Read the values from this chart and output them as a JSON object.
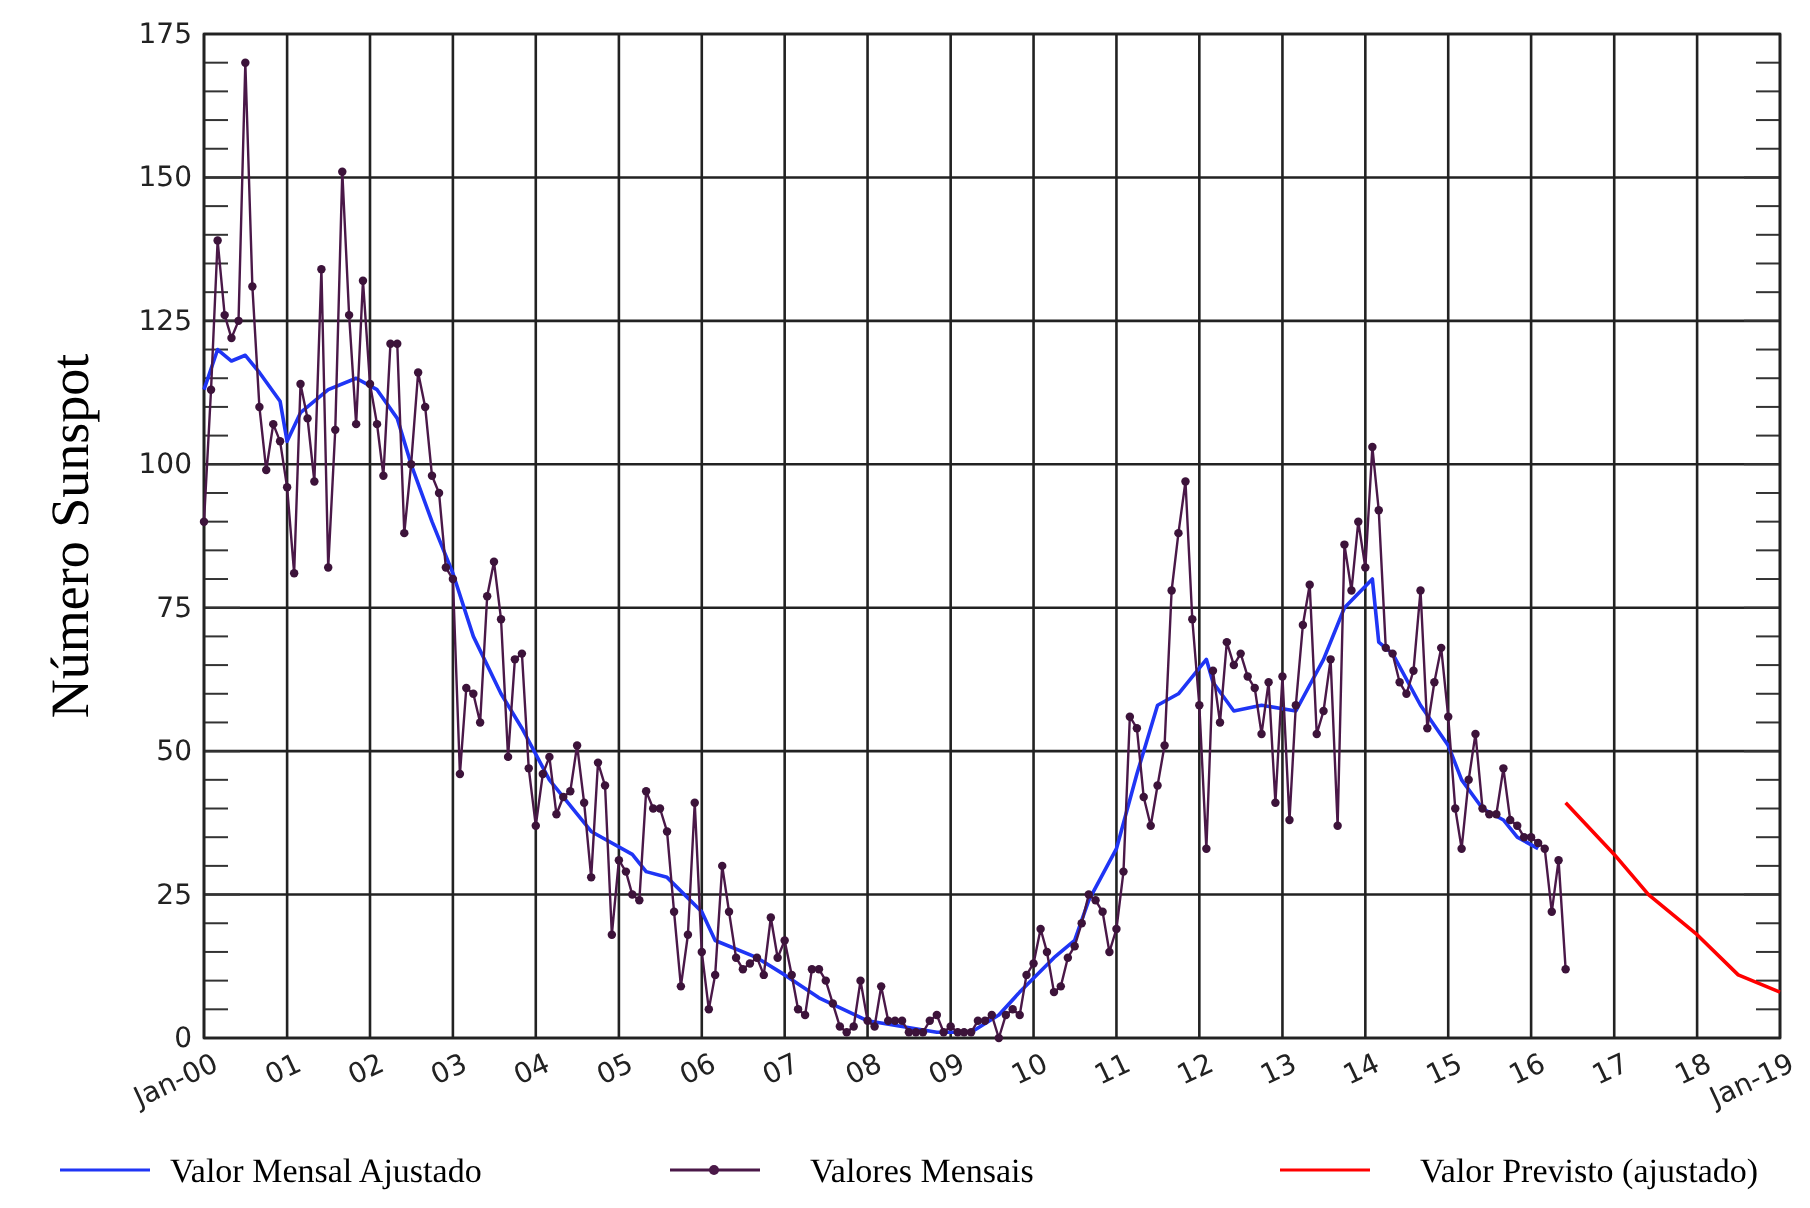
{
  "chart_data": {
    "type": "line",
    "ylabel": "Número Sunspot",
    "xlim": [
      "2000-01",
      "2019-01"
    ],
    "xticks": [
      {
        "value": "2000-01",
        "label": "Jan-00"
      },
      {
        "value": "2001-01",
        "label": "01"
      },
      {
        "value": "2002-01",
        "label": "02"
      },
      {
        "value": "2003-01",
        "label": "03"
      },
      {
        "value": "2004-01",
        "label": "04"
      },
      {
        "value": "2005-01",
        "label": "05"
      },
      {
        "value": "2006-01",
        "label": "06"
      },
      {
        "value": "2007-01",
        "label": "07"
      },
      {
        "value": "2008-01",
        "label": "08"
      },
      {
        "value": "2009-01",
        "label": "09"
      },
      {
        "value": "2010-01",
        "label": "10"
      },
      {
        "value": "2011-01",
        "label": "11"
      },
      {
        "value": "2012-01",
        "label": "12"
      },
      {
        "value": "2013-01",
        "label": "13"
      },
      {
        "value": "2014-01",
        "label": "14"
      },
      {
        "value": "2015-01",
        "label": "15"
      },
      {
        "value": "2016-01",
        "label": "16"
      },
      {
        "value": "2017-01",
        "label": "17"
      },
      {
        "value": "2018-01",
        "label": "18"
      },
      {
        "value": "2019-01",
        "label": "Jan-19"
      }
    ],
    "ylim": [
      0,
      175
    ],
    "yticks": [
      0,
      {
        "value": 5,
        "label": null
      },
      {
        "value": 10,
        "label": null
      },
      {
        "value": 15,
        "label": null
      },
      {
        "value": 20,
        "label": null
      },
      25,
      {
        "value": 30,
        "label": null
      },
      {
        "value": 35,
        "label": null
      },
      {
        "value": 40,
        "label": null
      },
      {
        "value": 45,
        "label": null
      },
      50,
      {
        "value": 55,
        "label": null
      },
      {
        "value": 60,
        "label": null
      },
      {
        "value": 65,
        "label": null
      },
      {
        "value": 70,
        "label": null
      },
      75,
      {
        "value": 80,
        "label": null
      },
      {
        "value": 85,
        "label": null
      },
      {
        "value": 90,
        "label": null
      },
      {
        "value": 95,
        "label": null
      },
      100,
      {
        "value": 105,
        "label": null
      },
      {
        "value": 110,
        "label": null
      },
      {
        "value": 115,
        "label": null
      },
      {
        "value": 120,
        "label": null
      },
      125,
      {
        "value": 130,
        "label": null
      },
      {
        "value": 135,
        "label": null
      },
      {
        "value": 140,
        "label": null
      },
      {
        "value": 145,
        "label": null
      },
      150,
      {
        "value": 155,
        "label": null
      },
      {
        "value": 160,
        "label": null
      },
      {
        "value": 165,
        "label": null
      },
      {
        "value": 170,
        "label": null
      },
      175
    ],
    "grid": true,
    "legend": "bottom",
    "series": [
      {
        "name": "Valor Mensal Ajustado",
        "color": "#1f35f5",
        "x": [
          "2000-01",
          "2000-03",
          "2000-05",
          "2000-07",
          "2000-09",
          "2000-12",
          "2001-01",
          "2001-03",
          "2001-07",
          "2001-11",
          "2002-02",
          "2002-05",
          "2002-07",
          "2002-10",
          "2003-01",
          "2003-04",
          "2003-08",
          "2003-11",
          "2004-03",
          "2004-09",
          "2005-03",
          "2005-05",
          "2005-08",
          "2006-01",
          "2006-03",
          "2006-09",
          "2007-01",
          "2007-06",
          "2008-01",
          "2008-06",
          "2008-11",
          "2009-04",
          "2009-08",
          "2009-11",
          "2010-04",
          "2010-07",
          "2010-09",
          "2011-01",
          "2011-04",
          "2011-07",
          "2011-10",
          "2012-02",
          "2012-03",
          "2012-06",
          "2012-10",
          "2013-03",
          "2013-07",
          "2013-10",
          "2014-02",
          "2014-03",
          "2014-05",
          "2014-09",
          "2015-01",
          "2015-03",
          "2015-06",
          "2015-09",
          "2015-11",
          "2016-02"
        ],
        "values": [
          113,
          120,
          118,
          119,
          116,
          111,
          104,
          109,
          113,
          115,
          113,
          108,
          100,
          90,
          81,
          70,
          60,
          54,
          45,
          36,
          32,
          29,
          28,
          22,
          17,
          14,
          11,
          7,
          3,
          2,
          1,
          1,
          4,
          8,
          14,
          17,
          24,
          33,
          46,
          58,
          60,
          66,
          62,
          57,
          58,
          57,
          66,
          75,
          80,
          69,
          67,
          58,
          51,
          45,
          40,
          38,
          35,
          33
        ]
      },
      {
        "name": "Valores Mensais",
        "color": "#4a1848",
        "marker": "circle",
        "x": [
          "2000-01",
          "2000-02",
          "2000-03",
          "2000-04",
          "2000-05",
          "2000-06",
          "2000-07",
          "2000-08",
          "2000-09",
          "2000-10",
          "2000-11",
          "2000-12",
          "2001-01",
          "2001-02",
          "2001-03",
          "2001-04",
          "2001-05",
          "2001-06",
          "2001-07",
          "2001-08",
          "2001-09",
          "2001-10",
          "2001-11",
          "2001-12",
          "2002-01",
          "2002-02",
          "2002-03",
          "2002-04",
          "2002-05",
          "2002-06",
          "2002-07",
          "2002-08",
          "2002-09",
          "2002-10",
          "2002-11",
          "2002-12",
          "2003-01",
          "2003-02",
          "2003-03",
          "2003-04",
          "2003-05",
          "2003-06",
          "2003-07",
          "2003-08",
          "2003-09",
          "2003-10",
          "2003-11",
          "2003-12",
          "2004-01",
          "2004-02",
          "2004-03",
          "2004-04",
          "2004-05",
          "2004-06",
          "2004-07",
          "2004-08",
          "2004-09",
          "2004-10",
          "2004-11",
          "2004-12",
          "2005-01",
          "2005-02",
          "2005-03",
          "2005-04",
          "2005-05",
          "2005-06",
          "2005-07",
          "2005-08",
          "2005-09",
          "2005-10",
          "2005-11",
          "2005-12",
          "2006-01",
          "2006-02",
          "2006-03",
          "2006-04",
          "2006-05",
          "2006-06",
          "2006-07",
          "2006-08",
          "2006-09",
          "2006-10",
          "2006-11",
          "2006-12",
          "2007-01",
          "2007-02",
          "2007-03",
          "2007-04",
          "2007-05",
          "2007-06",
          "2007-07",
          "2007-08",
          "2007-09",
          "2007-10",
          "2007-11",
          "2007-12",
          "2008-01",
          "2008-02",
          "2008-03",
          "2008-04",
          "2008-05",
          "2008-06",
          "2008-07",
          "2008-08",
          "2008-09",
          "2008-10",
          "2008-11",
          "2008-12",
          "2009-01",
          "2009-02",
          "2009-03",
          "2009-04",
          "2009-05",
          "2009-06",
          "2009-07",
          "2009-08",
          "2009-09",
          "2009-10",
          "2009-11",
          "2009-12",
          "2010-01",
          "2010-02",
          "2010-03",
          "2010-04",
          "2010-05",
          "2010-06",
          "2010-07",
          "2010-08",
          "2010-09",
          "2010-10",
          "2010-11",
          "2010-12",
          "2011-01",
          "2011-02",
          "2011-03",
          "2011-04",
          "2011-05",
          "2011-06",
          "2011-07",
          "2011-08",
          "2011-09",
          "2011-10",
          "2011-11",
          "2011-12",
          "2012-01",
          "2012-02",
          "2012-03",
          "2012-04",
          "2012-05",
          "2012-06",
          "2012-07",
          "2012-08",
          "2012-09",
          "2012-10",
          "2012-11",
          "2012-12",
          "2013-01",
          "2013-02",
          "2013-03",
          "2013-04",
          "2013-05",
          "2013-06",
          "2013-07",
          "2013-08",
          "2013-09",
          "2013-10",
          "2013-11",
          "2013-12",
          "2014-01",
          "2014-02",
          "2014-03",
          "2014-04",
          "2014-05",
          "2014-06",
          "2014-07",
          "2014-08",
          "2014-09",
          "2014-10",
          "2014-11",
          "2014-12",
          "2015-01",
          "2015-02",
          "2015-03",
          "2015-04",
          "2015-05",
          "2015-06",
          "2015-07",
          "2015-08",
          "2015-09",
          "2015-10",
          "2015-11",
          "2015-12",
          "2016-01",
          "2016-02",
          "2016-03",
          "2016-04",
          "2016-05",
          "2016-06"
        ],
        "values": [
          90,
          113,
          139,
          126,
          122,
          125,
          170,
          131,
          110,
          99,
          107,
          104,
          96,
          81,
          114,
          108,
          97,
          134,
          82,
          106,
          151,
          126,
          107,
          132,
          114,
          107,
          98,
          121,
          121,
          88,
          100,
          116,
          110,
          98,
          95,
          82,
          80,
          46,
          61,
          60,
          55,
          77,
          83,
          73,
          49,
          66,
          67,
          47,
          37,
          46,
          49,
          39,
          42,
          43,
          51,
          41,
          28,
          48,
          44,
          18,
          31,
          29,
          25,
          24,
          43,
          40,
          40,
          36,
          22,
          9,
          18,
          41,
          15,
          5,
          11,
          30,
          22,
          14,
          12,
          13,
          14,
          11,
          21,
          14,
          17,
          11,
          5,
          4,
          12,
          12,
          10,
          6,
          2,
          1,
          2,
          10,
          3,
          2,
          9,
          3,
          3,
          3,
          1,
          1,
          1,
          3,
          4,
          1,
          2,
          1,
          1,
          1,
          3,
          3,
          4,
          0,
          4,
          5,
          4,
          11,
          13,
          19,
          15,
          8,
          9,
          14,
          16,
          20,
          25,
          24,
          22,
          15,
          19,
          29,
          56,
          54,
          42,
          37,
          44,
          51,
          78,
          88,
          97,
          73,
          58,
          33,
          64,
          55,
          69,
          65,
          67,
          63,
          61,
          53,
          62,
          41,
          63,
          38,
          58,
          72,
          79,
          53,
          57,
          66,
          37,
          86,
          78,
          90,
          82,
          103,
          92,
          68,
          67,
          62,
          60,
          64,
          78,
          54,
          62,
          68,
          56,
          40,
          33,
          45,
          53,
          40,
          39,
          39,
          47,
          38,
          37,
          35,
          35,
          34,
          33,
          22,
          31,
          12
        ]
      },
      {
        "name": "Valor Previsto (ajustado)",
        "color": "#ff0000",
        "x": [
          "2016-06",
          "2017-01",
          "2017-06",
          "2018-01",
          "2018-07",
          "2019-01"
        ],
        "values": [
          41,
          32,
          25,
          18,
          11,
          8
        ]
      }
    ]
  }
}
